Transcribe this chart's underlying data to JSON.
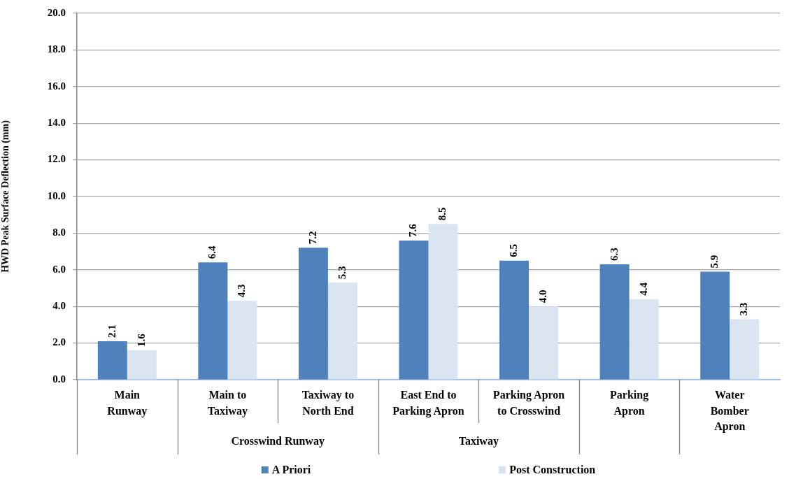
{
  "chart_data": {
    "type": "bar",
    "ylabel": "HWD Peak Surface Deflection (mm)",
    "categories": [
      "Main\nRunway",
      "Main to\nTaxiway",
      "Taxiway to\nNorth End",
      "East End to\nParking Apron",
      "Parking Apron\nto Crosswind",
      "Parking\nApron",
      "Water\nBomber\nApron"
    ],
    "series": [
      {
        "name": "A Priori",
        "color": "#4f81bd",
        "values": [
          2.1,
          6.4,
          7.2,
          7.6,
          6.5,
          6.3,
          5.9
        ],
        "value_labels": [
          "2.1",
          "6.4",
          "7.2",
          "7.6",
          "6.5",
          "6.3",
          "5.9"
        ]
      },
      {
        "name": "Post Construction",
        "color": "#dbe5f1",
        "values": [
          1.6,
          4.3,
          5.3,
          8.5,
          4.0,
          4.4,
          3.3
        ],
        "value_labels": [
          "1.6",
          "4.3",
          "5.3",
          "8.5",
          "4.0",
          "4.4",
          "3.3"
        ]
      }
    ],
    "ylim": [
      0,
      20
    ],
    "yticks": [
      {
        "value": 0,
        "label": "0.0"
      },
      {
        "value": 2,
        "label": "2.0"
      },
      {
        "value": 4,
        "label": "4.0"
      },
      {
        "value": 6,
        "label": "6.0"
      },
      {
        "value": 8,
        "label": "8.0"
      },
      {
        "value": 10,
        "label": "10.0"
      },
      {
        "value": 12,
        "label": "12.0"
      },
      {
        "value": 14,
        "label": "14.0"
      },
      {
        "value": 16,
        "label": "16.0"
      },
      {
        "value": 18,
        "label": "18.0"
      },
      {
        "value": 20,
        "label": "20.0"
      }
    ],
    "grid": "y",
    "legend": "bottom",
    "annotations": [
      "Crosswind Runway",
      "Taxiway"
    ]
  }
}
